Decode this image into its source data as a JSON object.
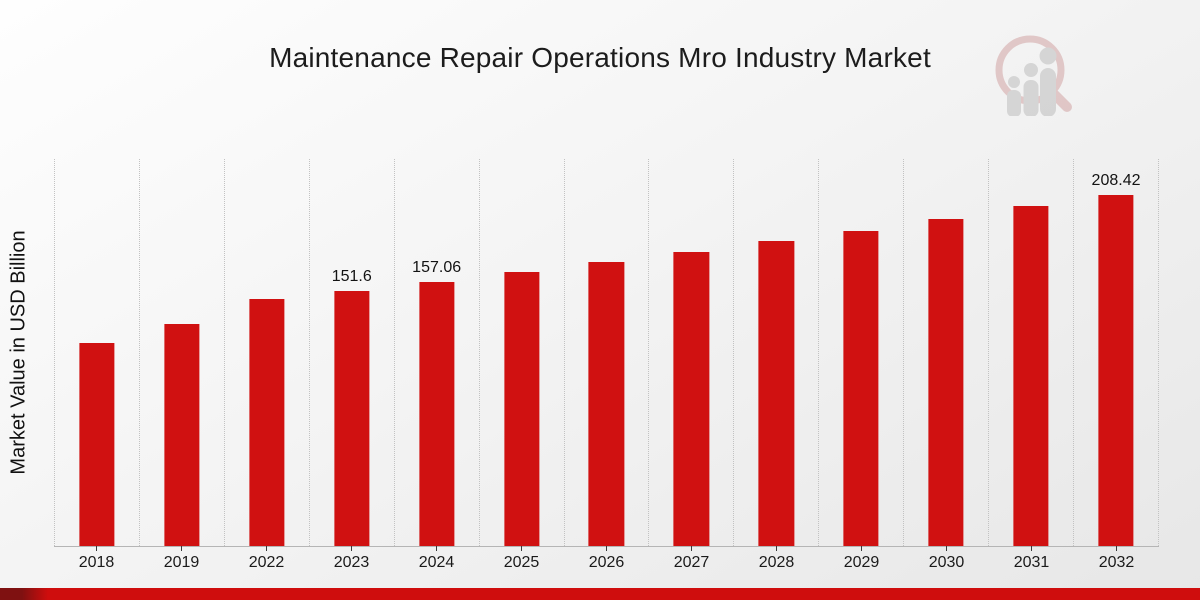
{
  "chart_data": {
    "type": "bar",
    "title": "Maintenance Repair Operations Mro Industry Market",
    "xlabel": "",
    "ylabel": "Market Value in USD Billion",
    "categories": [
      "2018",
      "2019",
      "2022",
      "2023",
      "2024",
      "2025",
      "2026",
      "2027",
      "2028",
      "2029",
      "2030",
      "2031",
      "2032"
    ],
    "values": [
      120.7,
      132.0,
      146.9,
      151.6,
      157.06,
      162.9,
      168.8,
      174.8,
      181.3,
      187.4,
      194.4,
      202.1,
      208.42
    ],
    "data_labels": {
      "2023": "151.6",
      "2024": "157.06",
      "2032": "208.42"
    },
    "ylim": [
      0,
      230
    ],
    "grid": "vertical-dotted",
    "legend": "none",
    "bar_color": "#d01111"
  },
  "colors": {
    "bar": "#d01111",
    "accent_strip": "#cf0d0d",
    "accent_strip_dark": "#7f1111",
    "gridline": "#c2c2c2",
    "axis_line": "#b5b5b5",
    "text": "#1c1c1c",
    "logo_ring": "#cf9d9d",
    "logo_figures": "#b9b9b9"
  }
}
